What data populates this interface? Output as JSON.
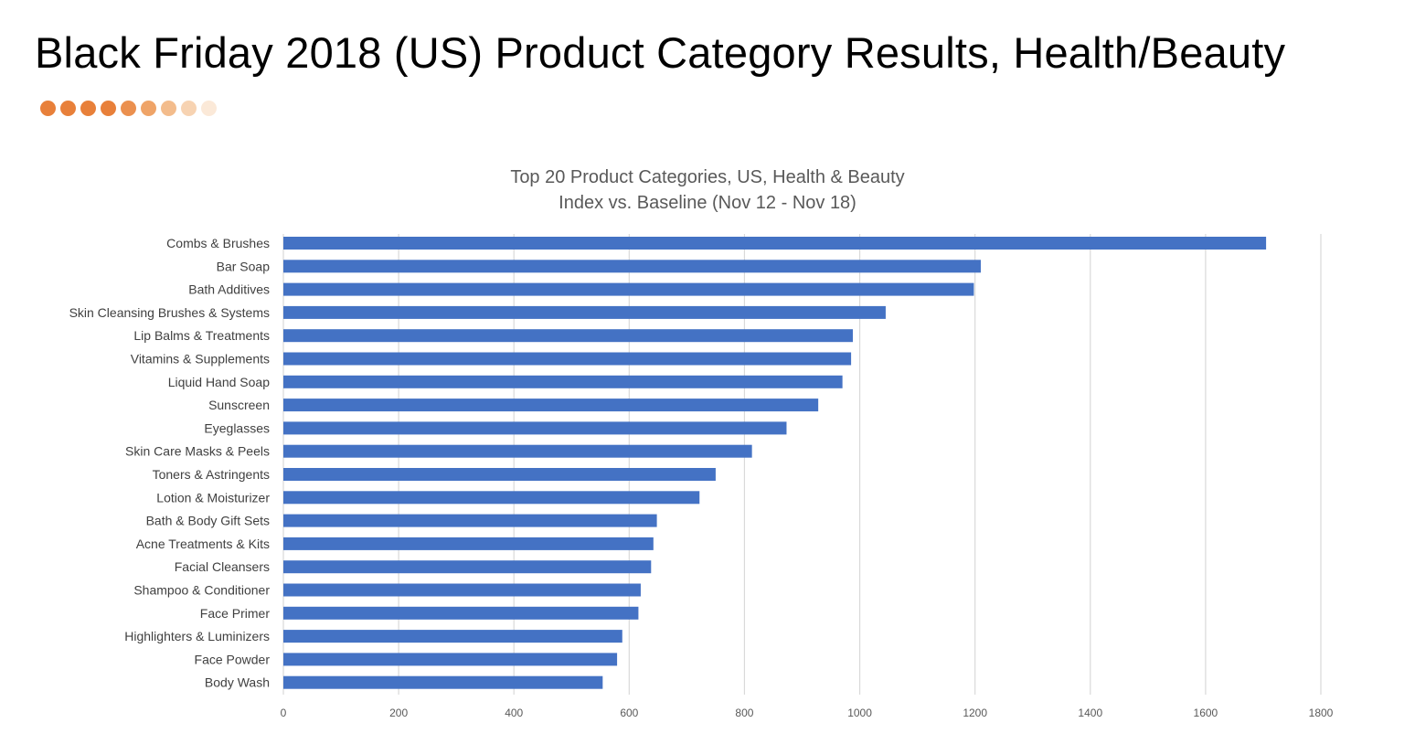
{
  "slide": {
    "title": "Black Friday 2018 (US) Product Category Results, Health/Beauty",
    "dot_colors": [
      "#E8803A",
      "#E8803A",
      "#E8803A",
      "#E8803A",
      "#EB904F",
      "#EFA468",
      "#F3BC8C",
      "#F7D3B2",
      "#FBE9D8"
    ]
  },
  "chart_data": {
    "type": "bar",
    "orientation": "horizontal",
    "title": "Top 20 Product Categories, US, Health & Beauty",
    "subtitle": "Index vs. Baseline (Nov 12 - Nov 18)",
    "categories": [
      "Combs & Brushes",
      "Bar Soap",
      "Bath Additives",
      "Skin Cleansing Brushes & Systems",
      "Lip Balms & Treatments",
      "Vitamins & Supplements",
      "Liquid Hand Soap",
      "Sunscreen",
      "Eyeglasses",
      "Skin Care Masks & Peels",
      "Toners & Astringents",
      "Lotion & Moisturizer",
      "Bath & Body Gift Sets",
      "Acne Treatments & Kits",
      "Facial Cleansers",
      "Shampoo & Conditioner",
      "Face Primer",
      "Highlighters & Luminizers",
      "Face Powder",
      "Body Wash"
    ],
    "values": [
      1705,
      1210,
      1198,
      1045,
      988,
      985,
      970,
      928,
      873,
      813,
      750,
      722,
      648,
      642,
      638,
      620,
      616,
      588,
      579,
      554
    ],
    "xlim": [
      0,
      1800
    ],
    "xticks": [
      0,
      200,
      400,
      600,
      800,
      1000,
      1200,
      1400,
      1600,
      1800
    ],
    "grid": true,
    "bar_color": "#4472C4",
    "grid_color": "#D9D9D9"
  }
}
